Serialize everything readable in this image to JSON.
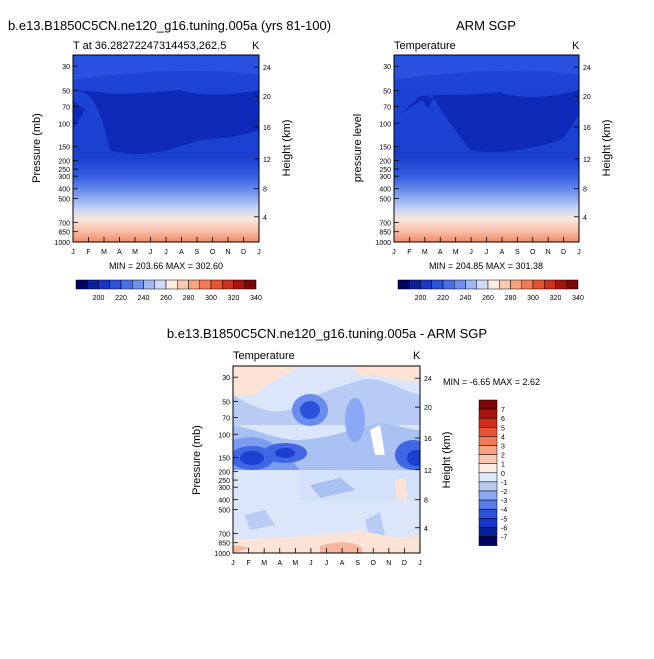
{
  "chart_data": [
    {
      "type": "heatmap",
      "title": "b.e13.B1850C5CN.ne120_g16.tuning.005a (yrs 81-100)",
      "subtitle_left": "T at 36.28272247314453,262.5",
      "units": "K",
      "ylabel": "Pressure (mb)",
      "ylabel_right": "Height (km)",
      "x_ticks": [
        "J",
        "F",
        "M",
        "A",
        "M",
        "J",
        "J",
        "A",
        "S",
        "O",
        "N",
        "D",
        "J"
      ],
      "y_ticks": [
        "30",
        "50",
        "70",
        "100",
        "150",
        "200",
        "250",
        "300",
        "400",
        "500",
        "700",
        "850",
        "1000"
      ],
      "y2_ticks": [
        "24",
        "20",
        "16",
        "12",
        "8",
        "4"
      ],
      "stats": "MIN = 203.66  MAX = 302.60",
      "colorbar_labels": [
        "200",
        "220",
        "240",
        "260",
        "280",
        "300",
        "320",
        "340"
      ]
    },
    {
      "type": "heatmap",
      "title": "ARM SGP",
      "subtitle_left": "Temperature",
      "units": "K",
      "ylabel": "pressure level",
      "ylabel_right": "Height (km)",
      "x_ticks": [
        "J",
        "F",
        "M",
        "A",
        "M",
        "J",
        "J",
        "A",
        "S",
        "O",
        "N",
        "D",
        "J"
      ],
      "y_ticks": [
        "30",
        "50",
        "70",
        "100",
        "150",
        "200",
        "250",
        "300",
        "400",
        "500",
        "700",
        "850",
        "1000"
      ],
      "y2_ticks": [
        "24",
        "20",
        "16",
        "12",
        "8",
        "4"
      ],
      "stats": "MIN = 204.85  MAX = 301.38",
      "colorbar_labels": [
        "200",
        "220",
        "240",
        "260",
        "280",
        "300",
        "320",
        "340"
      ]
    },
    {
      "type": "heatmap",
      "title": "b.e13.B1850C5CN.ne120_g16.tuning.005a - ARM SGP",
      "subtitle_left": "Temperature",
      "units": "K",
      "ylabel": "Pressure (mb)",
      "ylabel_right": "Height (km)",
      "x_ticks": [
        "J",
        "F",
        "M",
        "A",
        "M",
        "J",
        "J",
        "A",
        "S",
        "O",
        "N",
        "D",
        "J"
      ],
      "y_ticks": [
        "30",
        "50",
        "70",
        "100",
        "150",
        "200",
        "250",
        "300",
        "400",
        "500",
        "700",
        "850",
        "1000"
      ],
      "y2_ticks": [
        "24",
        "20",
        "16",
        "12",
        "8",
        "4"
      ],
      "stats": "MIN = -6.65 MAX =   2.62",
      "colorbar_labels": [
        "7",
        "6",
        "5",
        "4",
        "3",
        "2",
        "1",
        "0",
        "-1",
        "-2",
        "-3",
        "-4",
        "-5",
        "-6",
        "-7"
      ]
    }
  ],
  "colors": {
    "deep_blue": "#0a1f9c",
    "mid_blue": "#1e46d6",
    "light_blue": "#7c9cf2",
    "pale": "#fde3d6",
    "orange": "#f0764e",
    "dark_red": "#8a0a0a"
  }
}
